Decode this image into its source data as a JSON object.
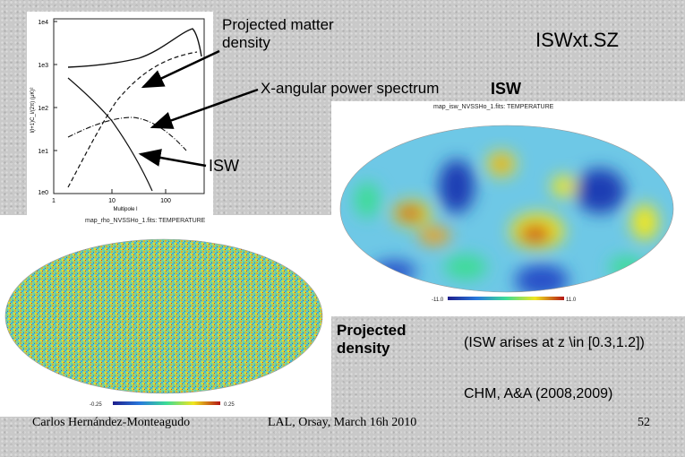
{
  "slide": {
    "title": "ISWxt.SZ",
    "page_number": "52"
  },
  "callouts": {
    "projected_matter_density": "Projected matter density",
    "x_angular_power_spectrum": "X-angular power spectrum",
    "isw_top": "ISW",
    "isw_plot": "ISW",
    "projected_density": "Projected density",
    "isw_redshift_note": "(ISW arises at z \\in [0.3,1.2])",
    "reference": "CHM, A&A (2008,2009)"
  },
  "footer": {
    "author": "Carlos Hernández-Monteagudo",
    "venue": "LAL, Orsay, March 16h 2010"
  },
  "spectrum_plot": {
    "y_ticks": [
      "1e4",
      "1e3",
      "1e2",
      "1e1",
      "1e0"
    ],
    "x_ticks": [
      "1",
      "10",
      "100"
    ],
    "x_label": "Multipole l",
    "y_label": "l(l+1)C_l/(2π) (μK)²"
  },
  "isw_map": {
    "title": "map_isw_NVSSHo_1.fits: TEMPERATURE",
    "scale_min": "-11.0",
    "scale_max": "11.0"
  },
  "density_map": {
    "title": "map_rho_NVSSHo_1.fits: TEMPERATURE",
    "scale_min": "-0.25",
    "scale_max": "0.25"
  },
  "colors": {
    "background": "#c9c9c9",
    "map_blue": "#1e3cb4",
    "map_red": "#c81e1e",
    "map_yellow": "#f0e61e",
    "map_cyan": "#4bb4e6"
  }
}
